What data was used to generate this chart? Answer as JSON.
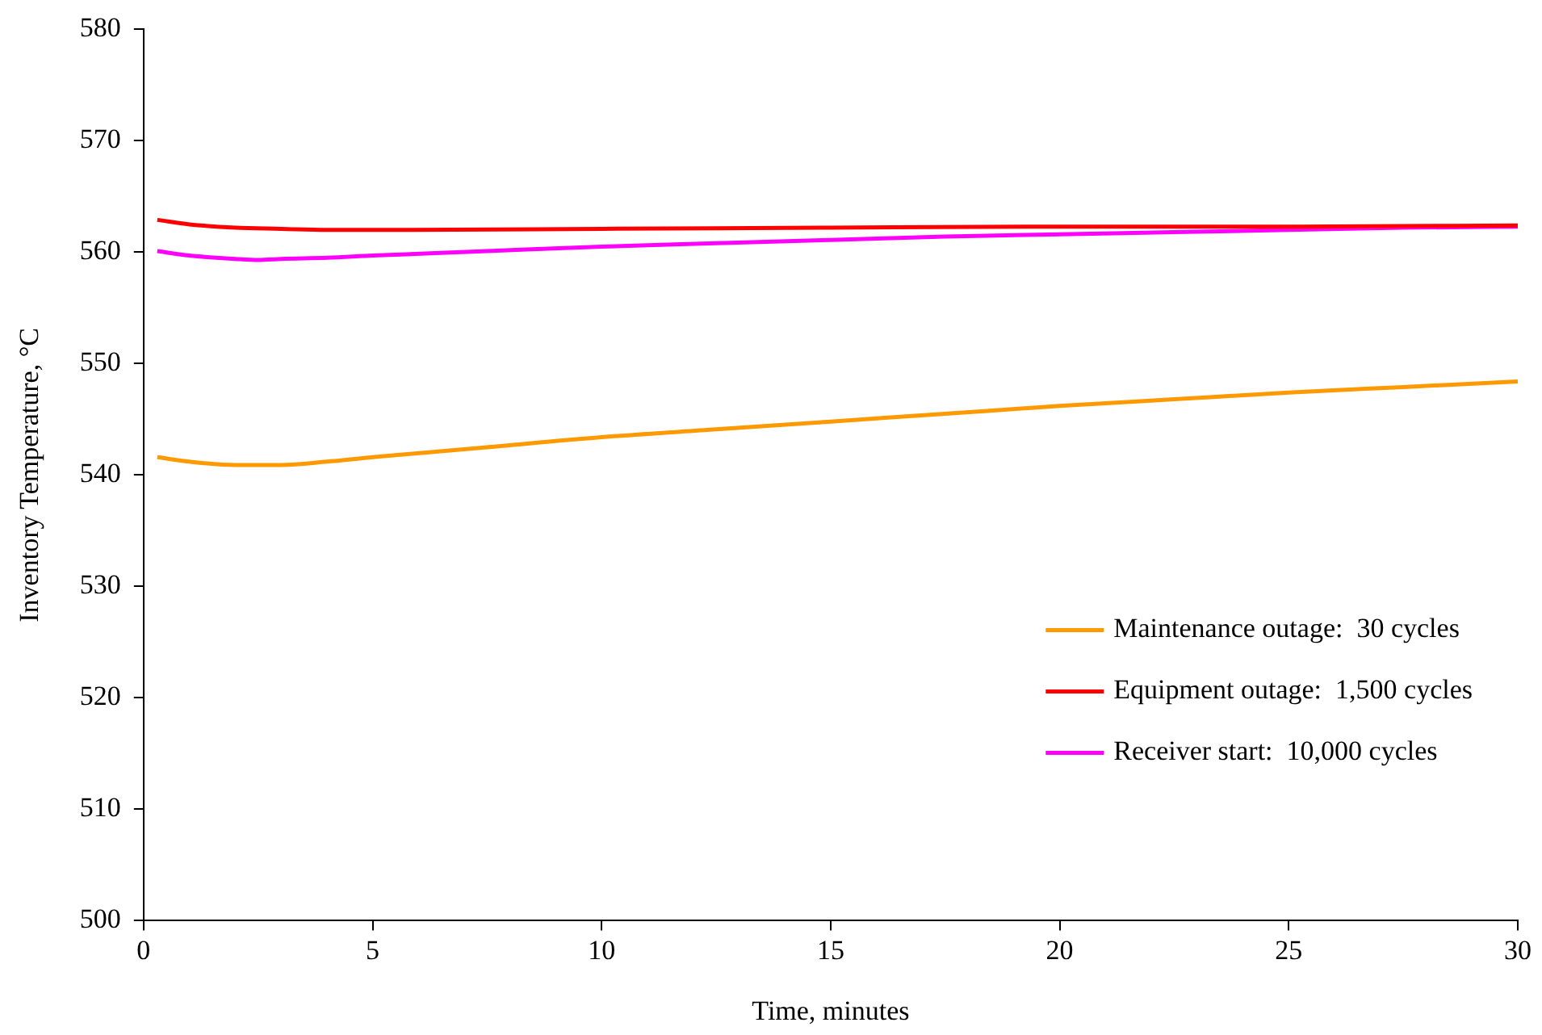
{
  "chart_data": {
    "type": "line",
    "xlabel": "Time, minutes",
    "ylabel": "Inventory Temperature, °C",
    "xlim": [
      0,
      30
    ],
    "xticks": [
      0,
      5,
      10,
      15,
      20,
      25,
      30
    ],
    "ylim": [
      500,
      580
    ],
    "yticks": [
      500,
      510,
      520,
      530,
      540,
      550,
      560,
      570,
      580
    ],
    "grid": false,
    "legend": "bottom right",
    "marker": "none",
    "line_style": "solid",
    "series": [
      {
        "name": "Maintenance outage:  30 cycles",
        "color": "#ff9900",
        "x": [
          0.3,
          1,
          2,
          2.5,
          3,
          4,
          5,
          7.5,
          10,
          12.5,
          15,
          17.5,
          20,
          22.5,
          25,
          27.5,
          30
        ],
        "values": [
          541.6,
          541.2,
          540.9,
          540.9,
          540.9,
          541.2,
          541.6,
          542.5,
          543.4,
          544.1,
          544.8,
          545.5,
          546.2,
          546.8,
          547.4,
          547.9,
          548.4
        ]
      },
      {
        "name": "Equipment outage:  1,500 cycles",
        "color": "#ff0000",
        "x": [
          0.3,
          1,
          2,
          3,
          4,
          5,
          10,
          15,
          20,
          25,
          30
        ],
        "values": [
          562.9,
          562.5,
          562.2,
          562.1,
          562.0,
          562.0,
          562.1,
          562.2,
          562.3,
          562.3,
          562.4
        ]
      },
      {
        "name": "Receiver start:  10,000 cycles",
        "color": "#ff00ff",
        "x": [
          0.3,
          1,
          2,
          2.5,
          3,
          4,
          5,
          7.5,
          10,
          12.5,
          15,
          17.5,
          20,
          22.5,
          25,
          27.5,
          30
        ],
        "values": [
          560.1,
          559.7,
          559.4,
          559.3,
          559.4,
          559.5,
          559.7,
          560.1,
          560.5,
          560.8,
          561.1,
          561.4,
          561.6,
          561.8,
          562.0,
          562.2,
          562.3
        ]
      }
    ]
  }
}
